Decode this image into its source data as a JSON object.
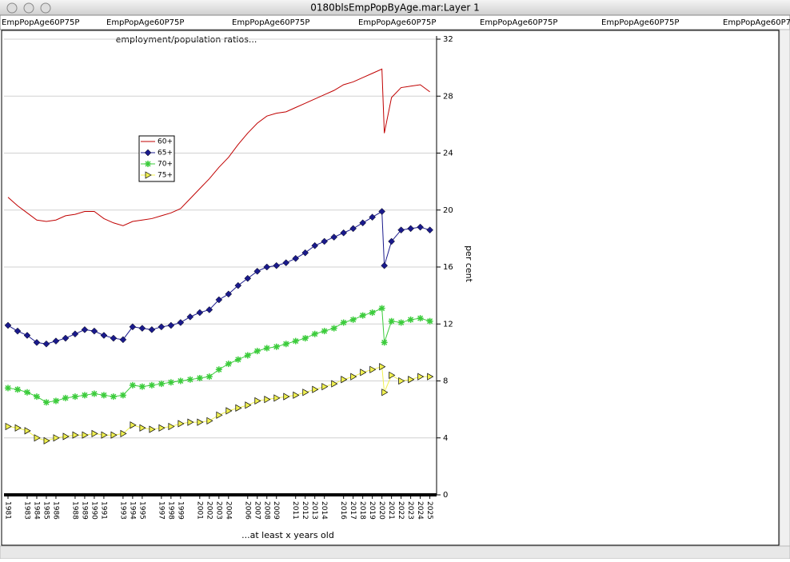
{
  "window": {
    "title": "0180blsEmpPopByAge.mar:Layer 1",
    "tabs": [
      "EmpPopAge60P75P",
      "EmpPopAge60P75P",
      "EmpPopAge60P75P",
      "EmpPopAge60P75P",
      "EmpPopAge60P75P",
      "EmpPopAge60P75P",
      "EmpPopAge60P75P"
    ]
  },
  "chart_data": {
    "type": "line",
    "title": "employment/population ratios...",
    "x_label": "...at least x years old",
    "y_label": "per cent",
    "x": [
      1981,
      1982,
      1983,
      1984,
      1985,
      1986,
      1987,
      1988,
      1989,
      1990,
      1991,
      1992,
      1993,
      1994,
      1995,
      1996,
      1997,
      1998,
      1999,
      2000,
      2001,
      2002,
      2003,
      2004,
      2005,
      2006,
      2007,
      2008,
      2009,
      2010,
      2011,
      2012,
      2013,
      2014,
      2015,
      2016,
      2017,
      2018,
      2019,
      2020,
      2020.25,
      2021,
      2022,
      2023,
      2024,
      2025
    ],
    "series": [
      {
        "name": "60+",
        "color": "#c00000",
        "marker": "none",
        "values": [
          20.9,
          20.3,
          19.8,
          19.3,
          19.2,
          19.3,
          19.6,
          19.7,
          19.9,
          19.9,
          19.4,
          19.1,
          18.9,
          19.2,
          19.3,
          19.4,
          19.6,
          19.8,
          20.1,
          20.8,
          21.5,
          22.2,
          23.0,
          23.7,
          24.6,
          25.4,
          26.1,
          26.6,
          26.8,
          26.9,
          27.2,
          27.5,
          27.8,
          28.1,
          28.4,
          28.8,
          29.0,
          29.3,
          29.6,
          29.9,
          25.4,
          27.9,
          28.6,
          28.7,
          28.8,
          28.3
        ]
      },
      {
        "name": "65+",
        "color": "#1a1a8c",
        "marker": "diamond",
        "values": [
          11.9,
          11.5,
          11.2,
          10.7,
          10.6,
          10.8,
          11.0,
          11.3,
          11.6,
          11.5,
          11.2,
          11.0,
          10.9,
          11.8,
          11.7,
          11.6,
          11.8,
          11.9,
          12.1,
          12.5,
          12.8,
          13.0,
          13.7,
          14.1,
          14.7,
          15.2,
          15.7,
          16.0,
          16.1,
          16.3,
          16.6,
          17.0,
          17.5,
          17.8,
          18.1,
          18.4,
          18.7,
          19.1,
          19.5,
          19.9,
          16.1,
          17.8,
          18.6,
          18.7,
          18.8,
          18.6
        ]
      },
      {
        "name": "70+",
        "color": "#3ccc3c",
        "marker": "star",
        "values": [
          7.5,
          7.4,
          7.2,
          6.9,
          6.5,
          6.6,
          6.8,
          6.9,
          7.0,
          7.1,
          7.0,
          6.9,
          7.0,
          7.7,
          7.6,
          7.7,
          7.8,
          7.9,
          8.0,
          8.1,
          8.2,
          8.3,
          8.8,
          9.2,
          9.5,
          9.8,
          10.1,
          10.3,
          10.4,
          10.6,
          10.8,
          11.0,
          11.3,
          11.5,
          11.7,
          12.1,
          12.3,
          12.6,
          12.8,
          13.1,
          10.7,
          12.2,
          12.1,
          12.3,
          12.4,
          12.2
        ]
      },
      {
        "name": "75+",
        "color": "#f0f050",
        "marker": "triangle",
        "values": [
          4.8,
          4.7,
          4.5,
          4.0,
          3.8,
          4.0,
          4.1,
          4.2,
          4.2,
          4.3,
          4.2,
          4.2,
          4.3,
          4.9,
          4.7,
          4.6,
          4.7,
          4.8,
          5.0,
          5.1,
          5.1,
          5.2,
          5.6,
          5.9,
          6.1,
          6.3,
          6.6,
          6.7,
          6.8,
          6.9,
          7.0,
          7.2,
          7.4,
          7.6,
          7.8,
          8.1,
          8.3,
          8.6,
          8.8,
          9.0,
          7.2,
          8.4,
          8.0,
          8.1,
          8.3,
          8.3
        ]
      }
    ],
    "xlim": [
      1981,
      2025.2
    ],
    "xticks": [
      1981,
      1983,
      1984,
      1985,
      1986,
      1988,
      1989,
      1990,
      1991,
      1993,
      1994,
      1995,
      1997,
      1998,
      1999,
      2001,
      2002,
      2003,
      2004,
      2006,
      2007,
      2008,
      2009,
      2011,
      2012,
      2013,
      2014,
      2016,
      2017,
      2018,
      2019,
      2020,
      2021,
      2022,
      2023,
      2024,
      2025
    ],
    "ylim": [
      0,
      32
    ],
    "yticks": [
      0,
      4,
      8,
      12,
      16,
      20,
      24,
      28,
      32
    ],
    "grid": true,
    "legend": "upper-left"
  }
}
